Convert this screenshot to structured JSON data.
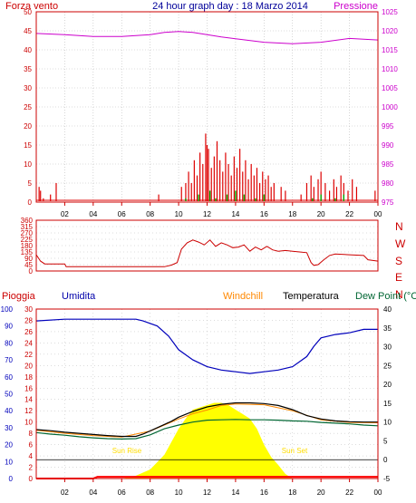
{
  "header": {
    "wind_label": "Forza vento",
    "wind_label_color": "#cc0000",
    "title": "24 hour graph day : 18 Marzo 2014",
    "title_color": "#000099",
    "pressure_label": "Pressione",
    "pressure_label_color": "#cc00cc"
  },
  "lower_labels": {
    "rain": "Pioggia",
    "humidity": "Umidita",
    "windchill": "Windchill",
    "temperature": "Temperatura",
    "dewpoint": "Dew Point (°C",
    "sunrise": "Sun Rise",
    "sunset": "Sun Set"
  },
  "colors": {
    "wind": "#dd0000",
    "gust": "#00aa00",
    "wind_blue": "#0000cc",
    "pressure": "#cc00cc",
    "direction": "#cc0000",
    "humidity": "#0000bb",
    "temperature": "#000000",
    "windchill": "#ff8800",
    "dewpoint": "#006633",
    "solar": "#ffff00",
    "rain": "#ff0000",
    "axis": "#cc0000",
    "grid": "#bbbbbb"
  },
  "chart_data": [
    {
      "type": "line",
      "title": "24 hour graph day : 18 Marzo 2014",
      "x_ticks": [
        "02",
        "04",
        "06",
        "08",
        "10",
        "12",
        "14",
        "16",
        "18",
        "20",
        "22",
        "00"
      ],
      "y_left_ticks": [
        "0",
        "5",
        "10",
        "15",
        "20",
        "25",
        "30",
        "35",
        "40",
        "45",
        "50"
      ],
      "y_right_ticks": [
        "975",
        "980",
        "985",
        "990",
        "995",
        "1000",
        "1005",
        "1010",
        "1015",
        "1020",
        "1025"
      ],
      "y_left_range": [
        0,
        50
      ],
      "y_right_range": [
        975,
        1025
      ],
      "x_range_hours": [
        0,
        24
      ],
      "series": [
        {
          "name": "Forza vento",
          "axis": "left",
          "style": "bars",
          "x": [
            0.2,
            0.3,
            0.5,
            1.0,
            1.4,
            8.6,
            10.2,
            10.5,
            10.7,
            10.9,
            11.1,
            11.3,
            11.5,
            11.7,
            11.9,
            12.0,
            12.1,
            12.3,
            12.5,
            12.7,
            12.9,
            13.1,
            13.3,
            13.5,
            13.7,
            13.9,
            14.1,
            14.3,
            14.5,
            14.7,
            14.9,
            15.1,
            15.3,
            15.5,
            15.7,
            15.9,
            16.1,
            16.3,
            16.5,
            16.7,
            17.2,
            17.5,
            18.6,
            19.0,
            19.3,
            19.5,
            19.8,
            20.0,
            20.3,
            20.6,
            20.9,
            21.1,
            21.4,
            21.6,
            21.9,
            22.2,
            22.5,
            23.8
          ],
          "values": [
            4,
            3,
            1,
            2,
            5,
            2,
            4,
            5,
            8,
            5,
            11,
            7,
            13,
            10,
            18,
            15,
            14,
            9,
            12,
            16,
            11,
            8,
            13,
            10,
            7,
            12,
            9,
            14,
            8,
            11,
            6,
            10,
            7,
            9,
            5,
            8,
            6,
            7,
            4,
            5,
            4,
            3,
            2,
            5,
            7,
            4,
            6,
            8,
            5,
            3,
            6,
            4,
            7,
            5,
            3,
            6,
            4,
            3
          ]
        },
        {
          "name": "",
          "axis": "left",
          "style": "bars",
          "x": [
            10.5,
            11.4,
            12.2,
            12.6,
            13.4,
            14.0,
            14.6,
            15.4,
            16.0,
            19.4,
            20.0,
            21.0,
            21.6
          ],
          "values": [
            1,
            2,
            3,
            1,
            2,
            3,
            2,
            1,
            2,
            1,
            2,
            1,
            2
          ]
        },
        {
          "name": "Pressione",
          "axis": "right",
          "style": "line",
          "x": [
            0,
            2,
            4,
            6,
            8,
            9,
            10,
            11,
            12,
            13,
            14,
            16,
            18,
            20,
            22,
            24
          ],
          "values": [
            1019.3,
            1019.0,
            1018.5,
            1018.5,
            1019.0,
            1019.6,
            1019.8,
            1019.6,
            1019.0,
            1018.4,
            1017.9,
            1017.0,
            1016.6,
            1017.0,
            1018.0,
            1017.6
          ]
        }
      ]
    },
    {
      "type": "line",
      "title": "",
      "x_ticks": [
        "02",
        "04",
        "06",
        "08",
        "10",
        "12",
        "14",
        "16",
        "18",
        "20",
        "22",
        "00"
      ],
      "y_left_ticks": [
        "0",
        "45",
        "90",
        "135",
        "180",
        "225",
        "270",
        "315",
        "360"
      ],
      "y_right_ticks": [
        "N",
        "W",
        "S",
        "E",
        "N"
      ],
      "y_range": [
        0,
        360
      ],
      "x_range_hours": [
        0,
        24
      ],
      "series": [
        {
          "name": "",
          "x": [
            0,
            0.3,
            0.6,
            1.0,
            2.0,
            2.1,
            4.0,
            6.0,
            8.0,
            9.0,
            9.5,
            9.9,
            10.2,
            10.6,
            11.0,
            11.4,
            11.8,
            12.2,
            12.6,
            13.0,
            13.4,
            13.8,
            14.2,
            14.6,
            15.0,
            15.4,
            15.8,
            16.2,
            16.6,
            17.0,
            17.5,
            18.0,
            18.5,
            19.0,
            19.3,
            19.5,
            19.8,
            20.2,
            20.6,
            21.0,
            22.0,
            23.0,
            23.3,
            24.0
          ],
          "values": [
            115,
            70,
            50,
            50,
            50,
            30,
            30,
            30,
            30,
            30,
            42,
            60,
            155,
            200,
            220,
            205,
            185,
            220,
            175,
            200,
            185,
            165,
            170,
            185,
            140,
            170,
            150,
            175,
            150,
            140,
            145,
            140,
            135,
            130,
            60,
            40,
            45,
            80,
            110,
            120,
            115,
            110,
            80,
            70
          ]
        }
      ]
    },
    {
      "type": "area",
      "title": "",
      "x_ticks": [
        "02",
        "04",
        "06",
        "08",
        "10",
        "12",
        "14",
        "16",
        "18",
        "20",
        "22",
        "00"
      ],
      "y_left_outer_ticks": [
        "0",
        "10",
        "20",
        "30",
        "40",
        "50",
        "60",
        "70",
        "80",
        "90",
        "100"
      ],
      "y_left_inner_ticks": [
        "0",
        "2",
        "4",
        "6",
        "8",
        "10",
        "12",
        "14",
        "16",
        "18",
        "20",
        "22",
        "24",
        "26",
        "28",
        "30"
      ],
      "y_right_ticks": [
        "-5",
        "0",
        "5",
        "10",
        "15",
        "20",
        "25",
        "30",
        "35",
        "40"
      ],
      "temperature_range": [
        -5,
        40
      ],
      "humidity_range": [
        0,
        100
      ],
      "x_range_hours": [
        0,
        24
      ],
      "series": [
        {
          "name": "Umidita",
          "axis": "humidity",
          "x": [
            0,
            2,
            4,
            6,
            7,
            7.5,
            8.5,
            9.3,
            10,
            11,
            12,
            13,
            14,
            15,
            16,
            17,
            18,
            19,
            19.5,
            20,
            21,
            22,
            23,
            24
          ],
          "values": [
            93,
            94,
            94,
            94,
            94,
            93,
            90,
            84,
            76,
            70,
            66,
            64,
            63,
            62,
            63,
            64,
            66,
            72,
            78,
            83,
            85,
            86,
            88,
            88
          ]
        },
        {
          "name": "Temperatura",
          "axis": "temperature",
          "x": [
            0,
            1,
            2,
            3,
            4,
            5,
            6,
            7,
            7.5,
            8.5,
            9.5,
            10,
            11,
            12,
            13,
            14,
            15,
            16,
            17,
            18,
            19,
            20,
            21,
            22,
            23,
            24
          ],
          "values": [
            8,
            7.7,
            7.3,
            7.0,
            6.7,
            6.4,
            6.2,
            6.2,
            6.8,
            8.5,
            10.2,
            11.3,
            12.8,
            14.0,
            14.7,
            15.1,
            15.1,
            14.9,
            14.4,
            13.3,
            11.7,
            10.8,
            10.3,
            10.1,
            10.0,
            10.0
          ]
        },
        {
          "name": "Windchill",
          "axis": "temperature",
          "x": [
            0,
            2,
            4,
            6,
            8,
            10,
            11,
            12,
            13,
            14,
            16,
            18,
            20,
            21,
            22,
            24
          ],
          "values": [
            7.8,
            7.0,
            6.4,
            6.0,
            7.6,
            10.8,
            12.2,
            13.2,
            14.4,
            14.8,
            14.6,
            13.0,
            10.6,
            10.2,
            9.9,
            9.8
          ]
        },
        {
          "name": "Dew Point",
          "axis": "temperature",
          "x": [
            0,
            1,
            2,
            3,
            4,
            5,
            6,
            7,
            8,
            9,
            10,
            11,
            12,
            13,
            14,
            15,
            16,
            17,
            18,
            19,
            20,
            21,
            22,
            23,
            24
          ],
          "values": [
            7.2,
            6.8,
            6.5,
            6.1,
            5.8,
            5.6,
            5.5,
            5.6,
            6.6,
            8.2,
            9.2,
            10.0,
            10.5,
            10.6,
            10.7,
            10.6,
            10.6,
            10.5,
            10.3,
            10.2,
            9.9,
            9.7,
            9.5,
            9.2,
            9.0
          ]
        },
        {
          "name": "Solar",
          "axis": "rain",
          "x": [
            6,
            7,
            8,
            9,
            10,
            10.5,
            11,
            11.5,
            12,
            12.5,
            13,
            13.5,
            14,
            14.5,
            15,
            15.5,
            16,
            16.5,
            17,
            17.5,
            18
          ],
          "values": [
            0,
            0.5,
            1.6,
            4.2,
            8.8,
            10.6,
            12.2,
            12.6,
            13.0,
            13.4,
            13.4,
            13.0,
            12.2,
            11.4,
            10.6,
            8.8,
            6.0,
            3.8,
            2.4,
            0.8,
            0
          ]
        },
        {
          "name": "Pioggia",
          "axis": "rain",
          "x": [
            0,
            4,
            4.3,
            24
          ],
          "values": [
            0.0,
            0.0,
            0.3,
            0.3
          ]
        }
      ]
    }
  ]
}
